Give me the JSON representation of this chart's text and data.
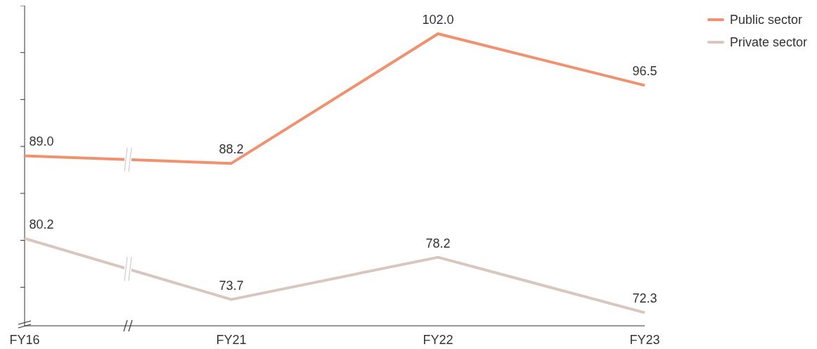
{
  "chart_data": {
    "type": "line",
    "categories": [
      "FY16",
      "FY21",
      "FY22",
      "FY23"
    ],
    "series": [
      {
        "name": "Public sector",
        "color": "#f0916f",
        "values": [
          89.0,
          88.2,
          102.0,
          96.5
        ],
        "value_labels": [
          "89.0",
          "88.2",
          "102.0",
          "96.5"
        ]
      },
      {
        "name": "Private sector",
        "color": "#d8c6bf",
        "values": [
          80.2,
          73.7,
          78.2,
          72.3
        ],
        "value_labels": [
          "80.2",
          "73.7",
          "78.2",
          "72.3"
        ]
      }
    ],
    "ylim": [
      70.9,
      105
    ],
    "yticks": [
      {
        "value": 75,
        "label": null
      },
      {
        "value": 80,
        "label": null
      },
      {
        "value": 85,
        "label": null
      },
      {
        "value": 90,
        "label": null
      },
      {
        "value": 95,
        "label": null
      },
      {
        "value": 100,
        "label": null
      },
      {
        "value": 105,
        "label": null
      }
    ],
    "legend": "top right",
    "grid": false,
    "marker": "none",
    "line_style": "solid"
  }
}
